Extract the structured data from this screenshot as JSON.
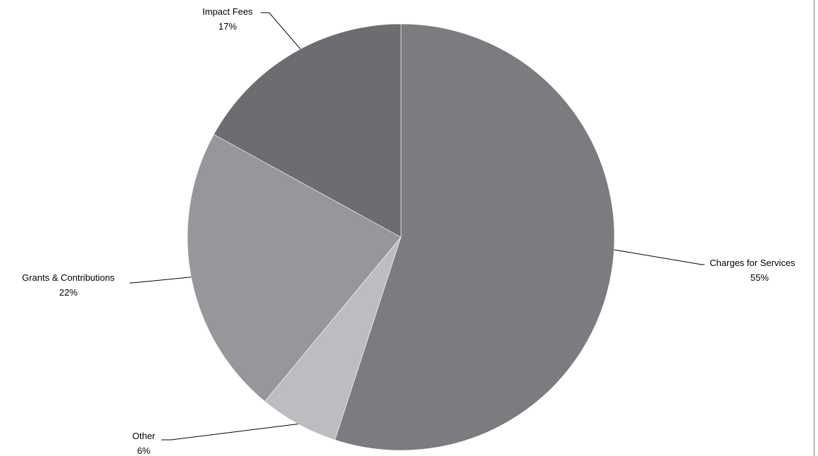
{
  "chart_data": {
    "type": "pie",
    "slices": [
      {
        "label": "Charges for Services",
        "value": 55,
        "value_label": "55%",
        "color": "#7b7c80"
      },
      {
        "label": "Other",
        "value": 6,
        "value_label": "6%",
        "color": "#bcbdc0"
      },
      {
        "label": "Grants & Contributions",
        "value": 22,
        "value_label": "22%",
        "color": "#96979b"
      },
      {
        "label": "Impact Fees",
        "value": 17,
        "value_label": "17%",
        "color": "#6c6d71"
      }
    ],
    "start_angle": "12 o'clock",
    "direction": "clockwise",
    "legend": "none (leader-line labels)"
  }
}
